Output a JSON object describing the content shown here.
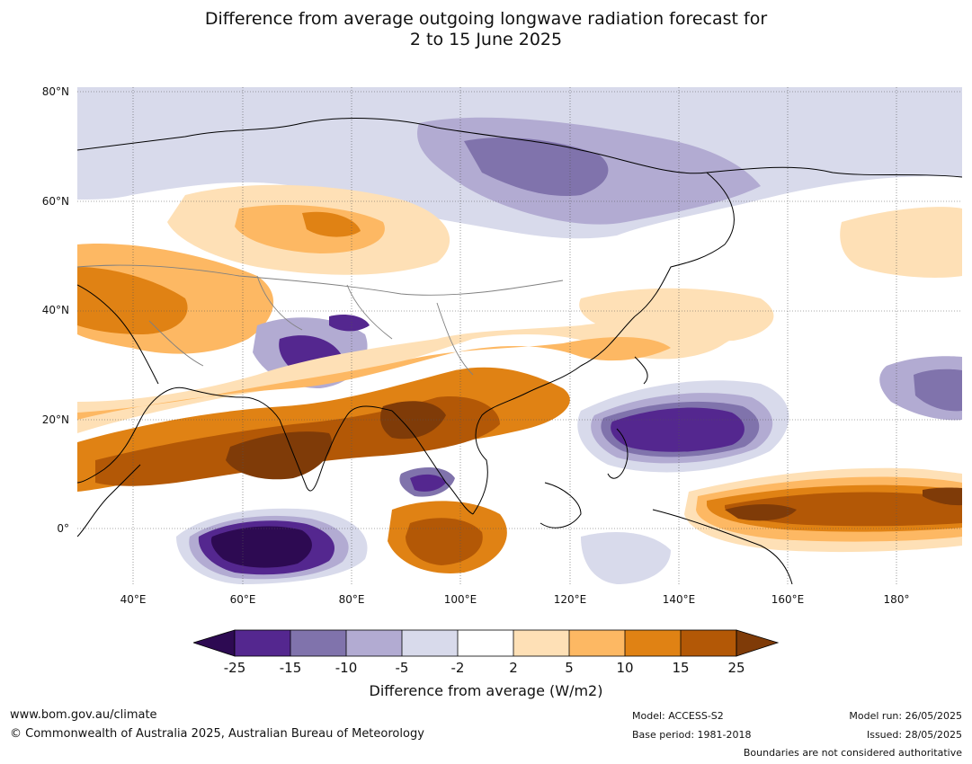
{
  "title": {
    "line1": "Difference from average outgoing longwave radiation forecast for",
    "line2": "2 to 15 June 2025"
  },
  "map": {
    "lat_labels": [
      "80°N",
      "60°N",
      "40°N",
      "20°N",
      "0°"
    ],
    "lon_labels": [
      "40°E",
      "60°E",
      "80°E",
      "100°E",
      "120°E",
      "140°E",
      "160°E",
      "180°"
    ]
  },
  "colorbar": {
    "title": "Difference from average (W/m2)",
    "ticks": [
      "-25",
      "-15",
      "-10",
      "-5",
      "-2",
      "2",
      "5",
      "10",
      "15",
      "25"
    ],
    "colors": {
      "extend_low": "#2d0a52",
      "b1": "#54278f",
      "b2": "#8073ac",
      "b3": "#b2abd2",
      "b4": "#d8daeb",
      "b5": "#ffffff",
      "b6": "#fee0b6",
      "b7": "#fdb863",
      "b8": "#e08214",
      "b9": "#b35806",
      "extend_high": "#7f3b08"
    }
  },
  "footer": {
    "website": "www.bom.gov.au/climate",
    "copyright": "© Commonwealth of Australia 2025, Australian Bureau of Meteorology",
    "model": "Model: ACCESS-S2",
    "base_period": "Base period: 1981-2018",
    "model_run": "Model run: 26/05/2025",
    "issued": "Issued: 28/05/2025",
    "disclaimer": "Boundaries are not considered authoritative"
  }
}
